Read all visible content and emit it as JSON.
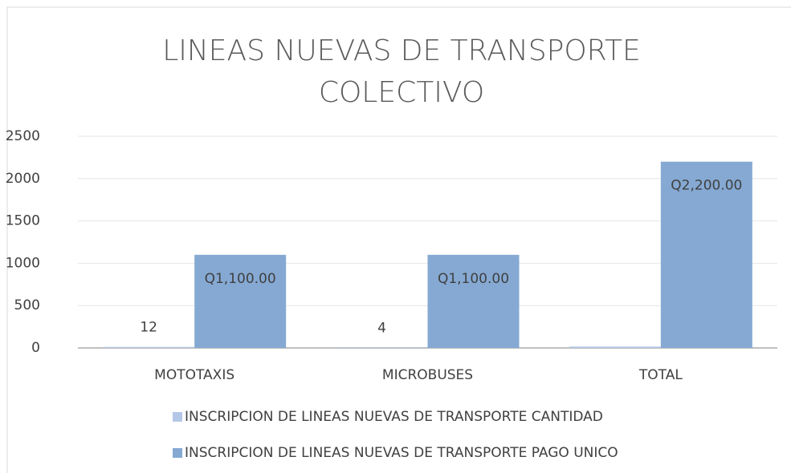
{
  "chart_data": {
    "type": "bar",
    "title": "LINEAS NUEVAS DE TRANSPORTE COLECTIVO",
    "categories": [
      "MOTOTAXIS",
      "MICROBUSES",
      "TOTAL"
    ],
    "series": [
      {
        "name": "INSCRIPCION DE LINEAS NUEVAS DE TRANSPORTE CANTIDAD",
        "color": "#b4c7e7",
        "values": [
          12,
          4,
          16
        ],
        "value_labels": [
          "12",
          "4",
          null
        ]
      },
      {
        "name": "INSCRIPCION DE LINEAS NUEVAS DE TRANSPORTE PAGO UNICO",
        "color": "#85a9d3",
        "values": [
          1100,
          1100,
          2200
        ],
        "value_labels": [
          "Q1,100.00",
          "Q1,100.00",
          "Q2,200.00"
        ]
      }
    ],
    "ylim": [
      0,
      2500
    ],
    "yticks": [
      0,
      500,
      1000,
      1500,
      2000,
      2500
    ],
    "grid": true,
    "legend": "bottom"
  }
}
